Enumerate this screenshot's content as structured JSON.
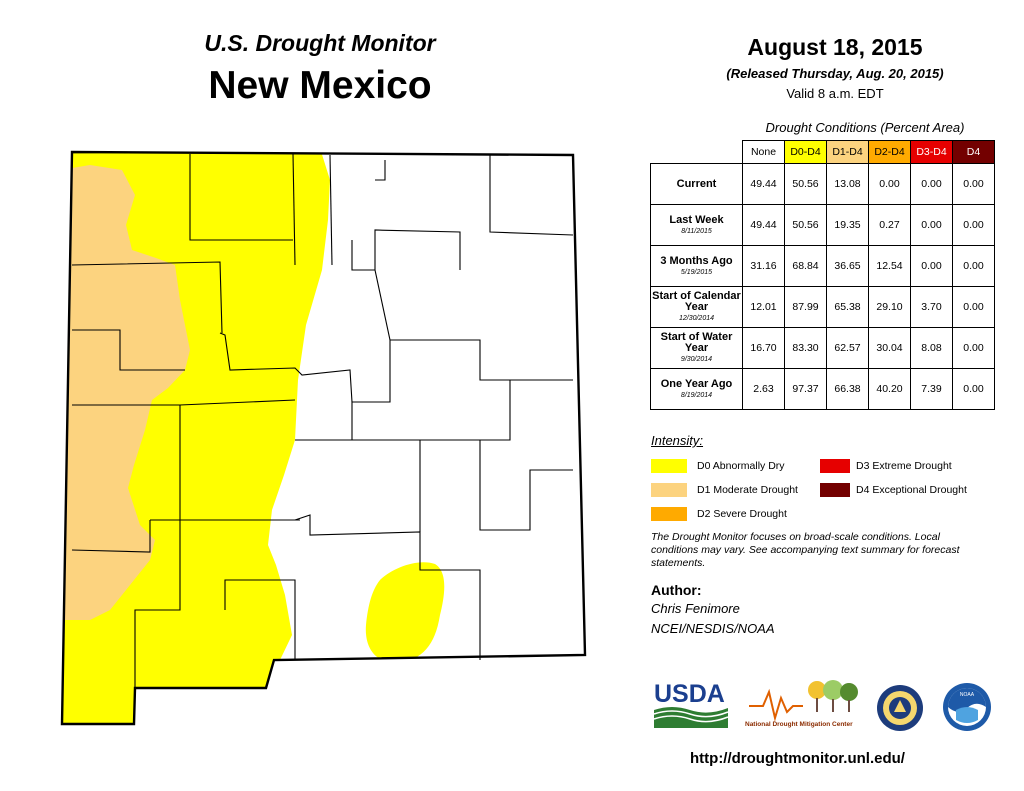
{
  "header": {
    "monitor_title": "U.S. Drought Monitor",
    "state": "New Mexico",
    "date": "August 18, 2015",
    "released": "(Released Thursday, Aug. 20, 2015)",
    "valid": "Valid 8 a.m. EDT"
  },
  "table": {
    "caption": "Drought Conditions (Percent Area)",
    "columns": [
      {
        "label": "None",
        "color": "#ffffff"
      },
      {
        "label": "D0-D4",
        "color": "#ffff00"
      },
      {
        "label": "D1-D4",
        "color": "#fcd37f"
      },
      {
        "label": "D2-D4",
        "color": "#ffaa00"
      },
      {
        "label": "D3-D4",
        "color": "#e60000"
      },
      {
        "label": "D4",
        "color": "#730000"
      }
    ],
    "rows": [
      {
        "label": "Current",
        "date": "",
        "values": [
          "49.44",
          "50.56",
          "13.08",
          "0.00",
          "0.00",
          "0.00"
        ]
      },
      {
        "label": "Last Week",
        "date": "8/11/2015",
        "values": [
          "49.44",
          "50.56",
          "19.35",
          "0.27",
          "0.00",
          "0.00"
        ]
      },
      {
        "label": "3 Months Ago",
        "date": "5/19/2015",
        "values": [
          "31.16",
          "68.84",
          "36.65",
          "12.54",
          "0.00",
          "0.00"
        ]
      },
      {
        "label": "Start of Calendar Year",
        "date": "12/30/2014",
        "values": [
          "12.01",
          "87.99",
          "65.38",
          "29.10",
          "3.70",
          "0.00"
        ]
      },
      {
        "label": "Start of Water Year",
        "date": "9/30/2014",
        "values": [
          "16.70",
          "83.30",
          "62.57",
          "30.04",
          "8.08",
          "0.00"
        ]
      },
      {
        "label": "One Year Ago",
        "date": "8/19/2014",
        "values": [
          "2.63",
          "97.37",
          "66.38",
          "40.20",
          "7.39",
          "0.00"
        ]
      }
    ]
  },
  "legend": {
    "title": "Intensity:",
    "items": [
      {
        "label": "D0 Abnormally Dry",
        "color": "#ffff00"
      },
      {
        "label": "D1 Moderate Drought",
        "color": "#fcd37f"
      },
      {
        "label": "D2 Severe Drought",
        "color": "#ffaa00"
      },
      {
        "label": "D3 Extreme Drought",
        "color": "#e60000"
      },
      {
        "label": "D4 Exceptional Drought",
        "color": "#730000"
      }
    ]
  },
  "note": "The Drought Monitor focuses on broad-scale conditions. Local conditions may vary. See accompanying text summary for forecast statements.",
  "author": {
    "title": "Author:",
    "name": "Chris Fenimore",
    "org": "NCEI/NESDIS/NOAA"
  },
  "logos": {
    "usda": "USDA",
    "ndmc": "National Drought Mitigation Center",
    "commerce_seal": "commerce-seal",
    "noaa": "NOAA"
  },
  "url": "http://droughtmonitor.unl.edu/"
}
